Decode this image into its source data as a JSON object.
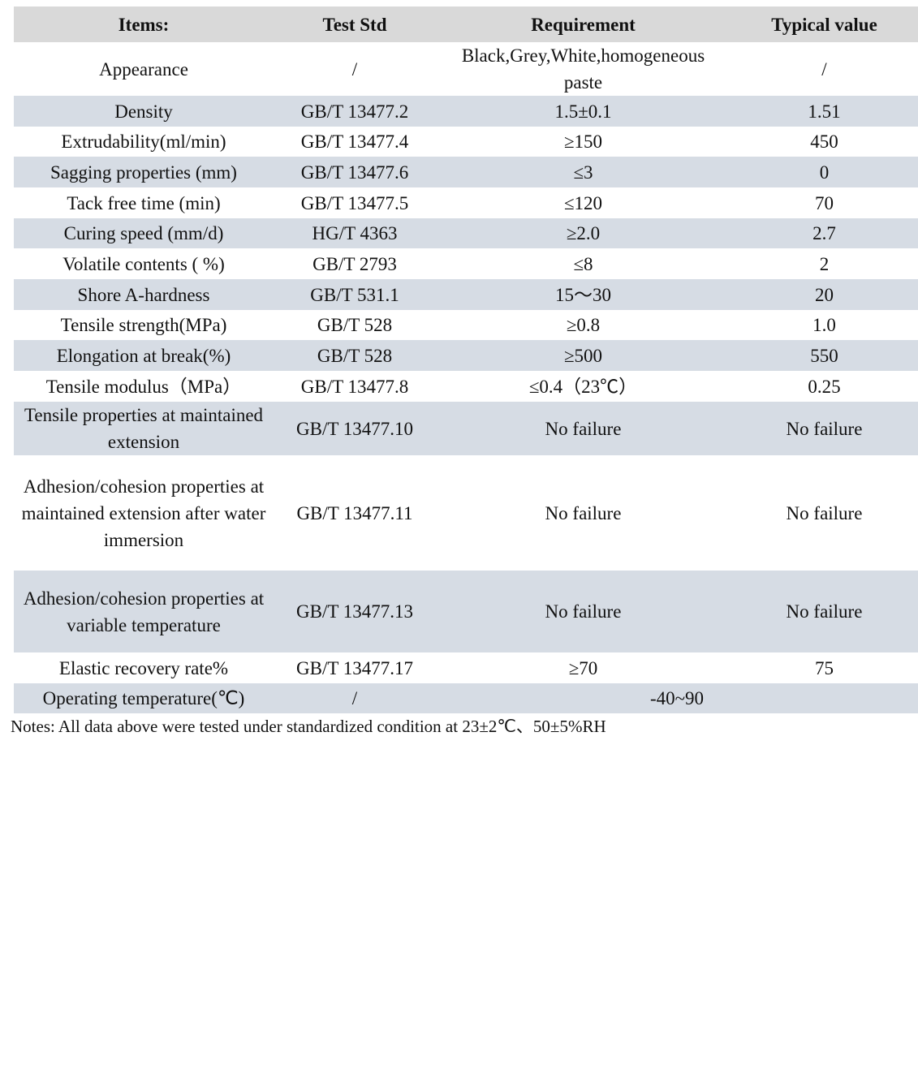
{
  "table": {
    "headers": [
      "Items:",
      "Test Std",
      "Requirement",
      "Typical value"
    ],
    "rows": [
      {
        "item": "Appearance",
        "std": "/",
        "req": "Black,Grey,White,homogeneous paste",
        "typ": "/"
      },
      {
        "item": "Density",
        "std": "GB/T 13477.2",
        "req": "1.5±0.1",
        "typ": "1.51"
      },
      {
        "item": "Extrudability(ml/min)",
        "std": "GB/T 13477.4",
        "req": "≥150",
        "typ": "450"
      },
      {
        "item": "Sagging properties (mm)",
        "std": "GB/T 13477.6",
        "req": "≤3",
        "typ": "0"
      },
      {
        "item": "Tack free time (min)",
        "std": "GB/T 13477.5",
        "req": "≤120",
        "typ": "70"
      },
      {
        "item": "Curing speed (mm/d)",
        "std": "HG/T 4363",
        "req": "≥2.0",
        "typ": "2.7"
      },
      {
        "item": "Volatile contents ( %)",
        "std": "GB/T 2793",
        "req": "≤8",
        "typ": "2"
      },
      {
        "item": "Shore A-hardness",
        "std": "GB/T 531.1",
        "req": "15～30",
        "typ": "20"
      },
      {
        "item": "Tensile strength(MPa)",
        "std": "GB/T 528",
        "req": "≥0.8",
        "typ": "1.0"
      },
      {
        "item": "Elongation at break(%)",
        "std": "GB/T 528",
        "req": "≥500",
        "typ": "550"
      },
      {
        "item": "Tensile modulus（MPa）",
        "std": "GB/T 13477.8",
        "req": "≤0.4（23℃）",
        "typ": "0.25"
      },
      {
        "item": "Tensile properties at maintained extension",
        "std": "GB/T 13477.10",
        "req": "No failure",
        "typ": "No failure"
      },
      {
        "item": "Adhesion/cohesion properties at maintained extension after water immersion",
        "std": "GB/T 13477.11",
        "req": "No failure",
        "typ": "No failure"
      },
      {
        "item": "Adhesion/cohesion properties at variable temperature",
        "std": "GB/T 13477.13",
        "req": "No failure",
        "typ": "No failure"
      },
      {
        "item": "Elastic recovery rate%",
        "std": "GB/T 13477.17",
        "req": "≥70",
        "typ": "75"
      },
      {
        "item": "Operating temperature(℃)",
        "std": "/",
        "req_typ": "-40~90"
      }
    ]
  },
  "notes": "Notes: All data above were tested under standardized condition at 23±2℃、50±5%RH",
  "colors": {
    "header_bg": "#d9d9d9",
    "stripe_bg": "#d6dce4"
  }
}
